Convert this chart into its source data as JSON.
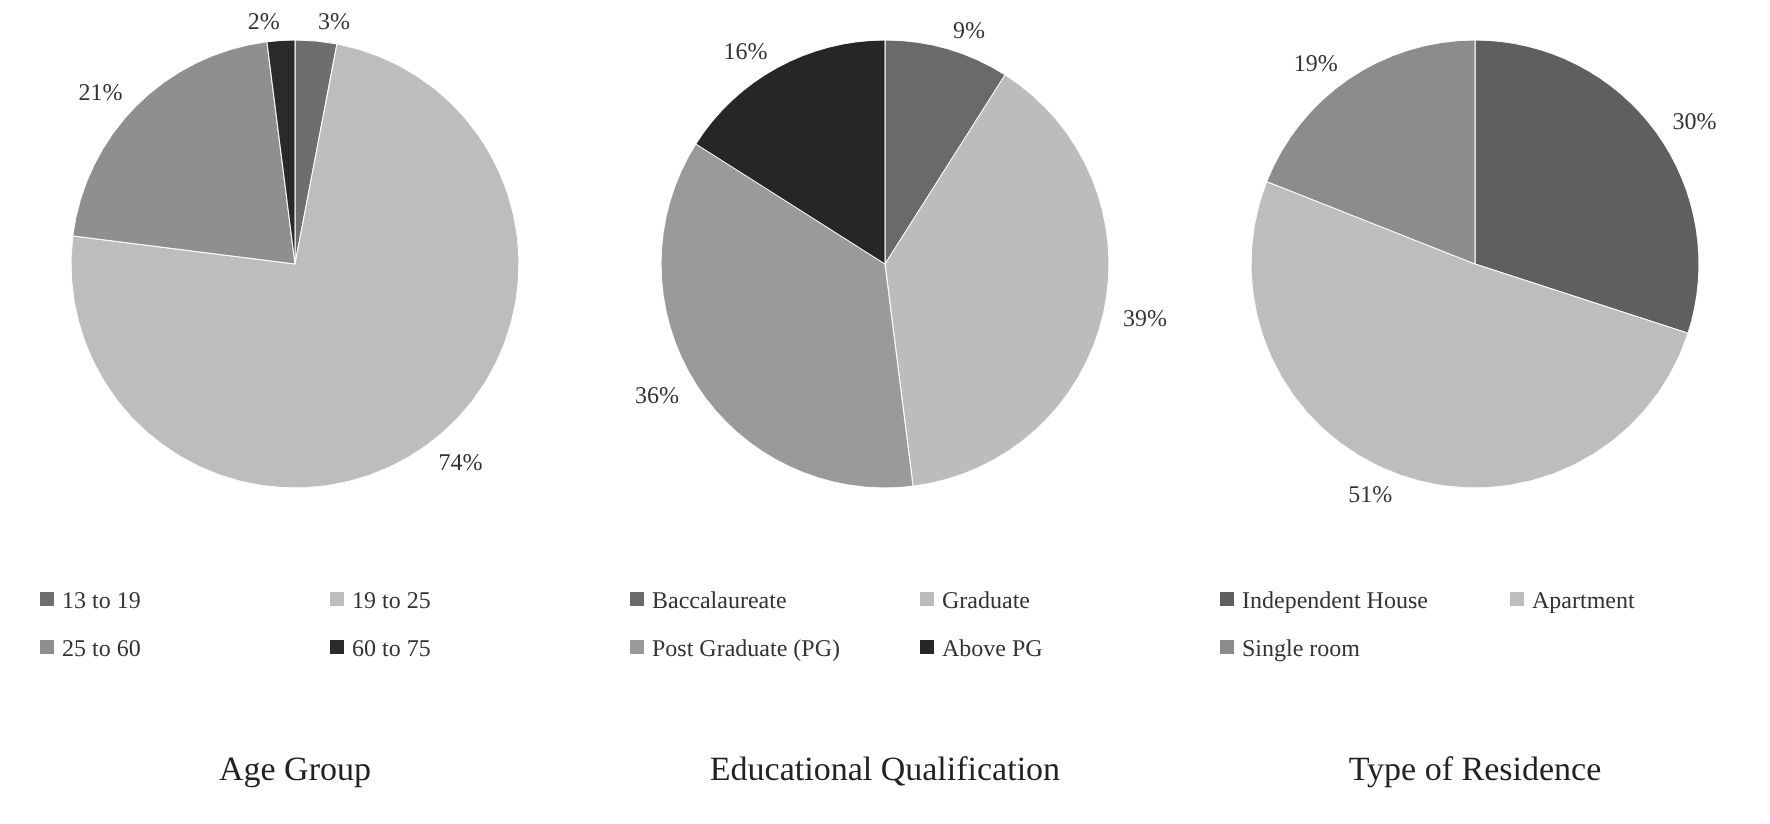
{
  "chart_data": [
    {
      "type": "pie",
      "title": "Age Group",
      "categories": [
        "13 to 19",
        "19 to 25",
        "25 to 60",
        "60 to 75"
      ],
      "values": [
        3,
        74,
        21,
        2
      ],
      "colors": [
        "#6e6e6e",
        "#bdbdbd",
        "#8f8f8f",
        "#2a2a2a"
      ],
      "value_labels": [
        "3%",
        "74%",
        "21%",
        "2%"
      ],
      "legend": "bottom"
    },
    {
      "type": "pie",
      "title": "Educational Qualification",
      "categories": [
        "Baccalaureate",
        "Graduate",
        "Post Graduate (PG)",
        "Above PG"
      ],
      "values": [
        9,
        39,
        36,
        16
      ],
      "colors": [
        "#6a6a6a",
        "#bcbcbc",
        "#9a9a9a",
        "#262626"
      ],
      "value_labels": [
        "9%",
        "39%",
        "36%",
        "16%"
      ],
      "legend": "bottom"
    },
    {
      "type": "pie",
      "title": "Type of Residence",
      "categories": [
        "Independent House",
        "Apartment",
        "Single room"
      ],
      "values": [
        30,
        51,
        19
      ],
      "colors": [
        "#5f5f5f",
        "#bdbdbd",
        "#8c8c8c"
      ],
      "value_labels": [
        "30%",
        "51%",
        "19%"
      ],
      "legend": "bottom"
    }
  ]
}
